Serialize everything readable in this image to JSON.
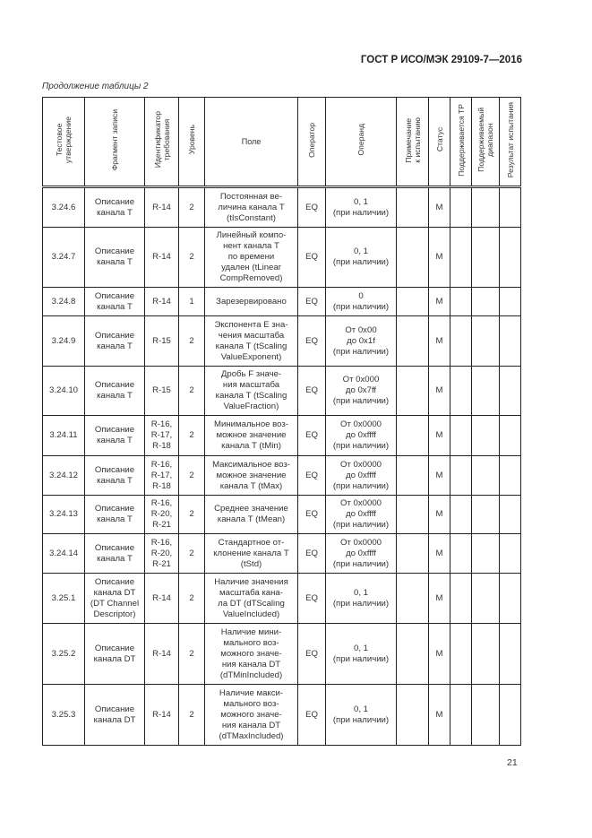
{
  "header": {
    "doc_title": "ГОСТ Р ИСО/МЭК 29109-7—2016",
    "caption": "Продолжение таблицы 2"
  },
  "columns": [
    "Тестовое\nутверждение",
    "Фрагмент записи",
    "Идентификатор\nтребования",
    "Уровень",
    "Поле",
    "Оператор",
    "Операнд",
    "Примечание\nк испытанию",
    "Статус",
    "Поддерживается ТР",
    "Поддерживаемый\nдиапазон",
    "Результат испытания"
  ],
  "rows": [
    {
      "id": "3.24.6",
      "fragment": "Описание\nканала T",
      "req": "R-14",
      "level": "2",
      "field": "Постоянная ве-\nличина канала T\n(tIsConstant)",
      "op": "EQ",
      "operand": "0, 1\n(при наличии)",
      "note": "",
      "status": "M"
    },
    {
      "id": "3.24.7",
      "fragment": "Описание\nканала T",
      "req": "R-14",
      "level": "2",
      "field": "Линейный компо-\nнент канала T\nпо времени\nудален (tLinear\nCompRemoved)",
      "op": "EQ",
      "operand": "0, 1\n(при наличии)",
      "note": "",
      "status": "M"
    },
    {
      "id": "3.24.8",
      "fragment": "Описание\nканала T",
      "req": "R-14",
      "level": "1",
      "field": "Зарезервировано",
      "op": "EQ",
      "operand": "0\n(при наличии)",
      "note": "",
      "status": "M"
    },
    {
      "id": "3.24.9",
      "fragment": "Описание\nканала T",
      "req": "R-15",
      "level": "2",
      "field": "Экспонента E зна-\nчения масштаба\nканала T (tScaling\nValueExponent)",
      "op": "EQ",
      "operand": "От 0x00\nдо 0x1f\n(при наличии)",
      "note": "",
      "status": "M"
    },
    {
      "id": "3.24.10",
      "fragment": "Описание\nканала T",
      "req": "R-15",
      "level": "2",
      "field": "Дробь F значе-\nния масштаба\nканала T (tScaling\nValueFraction)",
      "op": "EQ",
      "operand": "От 0x000\nдо 0x7ff\n(при наличии)",
      "note": "",
      "status": "M"
    },
    {
      "id": "3.24.11",
      "fragment": "Описание\nканала T",
      "req": "R-16,\nR-17,\nR-18",
      "level": "2",
      "field": "Минимальное воз-\nможное значение\nканала T (tMin)",
      "op": "EQ",
      "operand": "От 0x0000\nдо 0xffff\n(при наличии)",
      "note": "",
      "status": "M"
    },
    {
      "id": "3.24.12",
      "fragment": "Описание\nканала T",
      "req": "R-16,\nR-17,\nR-18",
      "level": "2",
      "field": "Максимальное воз-\nможное значение\nканала T (tMax)",
      "op": "EQ",
      "operand": "От 0x0000\nдо 0xffff\n(при наличии)",
      "note": "",
      "status": "M"
    },
    {
      "id": "3.24.13",
      "fragment": "Описание\nканала T",
      "req": "R-16,\nR-20,\nR-21",
      "level": "2",
      "field": "Среднее значение\nканала T (tMean)",
      "op": "EQ",
      "operand": "От 0x0000\nдо 0xffff\n(при наличии)",
      "note": "",
      "status": "M"
    },
    {
      "id": "3.24.14",
      "fragment": "Описание\nканала T",
      "req": "R-16,\nR-20,\nR-21",
      "level": "2",
      "field": "Стандартное от-\nклонение канала T\n(tStd)",
      "op": "EQ",
      "operand": "От 0x0000\nдо 0xffff\n(при наличии)",
      "note": "",
      "status": "M"
    },
    {
      "id": "3.25.1",
      "fragment": "Описание\nканала DT\n(DT Channel\nDescriptor)",
      "req": "R-14",
      "level": "2",
      "field": "Наличие значения\nмасштаба кана-\nла DT (dTScaling\nValueIncluded)",
      "op": "EQ",
      "operand": "0, 1\n(при наличии)",
      "note": "",
      "status": "M"
    },
    {
      "id": "3.25.2",
      "fragment": "Описание\nканала DT",
      "req": "R-14",
      "level": "2",
      "field": "Наличие мини-\nмального воз-\nможного значе-\nния канала DT\n(dTMinIncluded)",
      "op": "EQ",
      "operand": "0, 1\n(при наличии)",
      "note": "",
      "status": "M"
    },
    {
      "id": "3.25.3",
      "fragment": "Описание\nканала DT",
      "req": "R-14",
      "level": "2",
      "field": "Наличие макси-\nмального воз-\nможного значе-\nния канала DT\n(dTMaxIncluded)",
      "op": "EQ",
      "operand": "0, 1\n(при наличии)",
      "note": "",
      "status": "M"
    }
  ],
  "footer": {
    "page_number": "21"
  }
}
